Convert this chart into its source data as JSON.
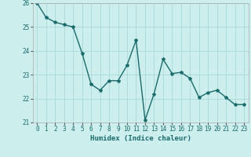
{
  "x": [
    0,
    1,
    2,
    3,
    4,
    5,
    6,
    7,
    8,
    9,
    10,
    11,
    12,
    13,
    14,
    15,
    16,
    17,
    18,
    19,
    20,
    21,
    22,
    23
  ],
  "y": [
    26.0,
    25.4,
    25.2,
    25.1,
    25.0,
    23.9,
    22.6,
    22.35,
    22.75,
    22.75,
    23.4,
    24.45,
    21.1,
    22.2,
    23.65,
    23.05,
    23.1,
    22.85,
    22.05,
    22.25,
    22.35,
    22.05,
    21.75,
    21.75
  ],
  "line_color": "#1a6b6b",
  "marker": "*",
  "background_color": "#cceeed",
  "grid_color": "#aad8d8",
  "xlabel": "Humidex (Indice chaleur)",
  "ylim": [
    21,
    26
  ],
  "xlim": [
    -0.5,
    23.5
  ],
  "yticks": [
    21,
    22,
    23,
    24,
    25,
    26
  ],
  "xticks": [
    0,
    1,
    2,
    3,
    4,
    5,
    6,
    7,
    8,
    9,
    10,
    11,
    12,
    13,
    14,
    15,
    16,
    17,
    18,
    19,
    20,
    21,
    22,
    23
  ],
  "tick_fontsize": 5.5,
  "xlabel_fontsize": 6.5,
  "line_width": 1.0,
  "marker_size": 3
}
